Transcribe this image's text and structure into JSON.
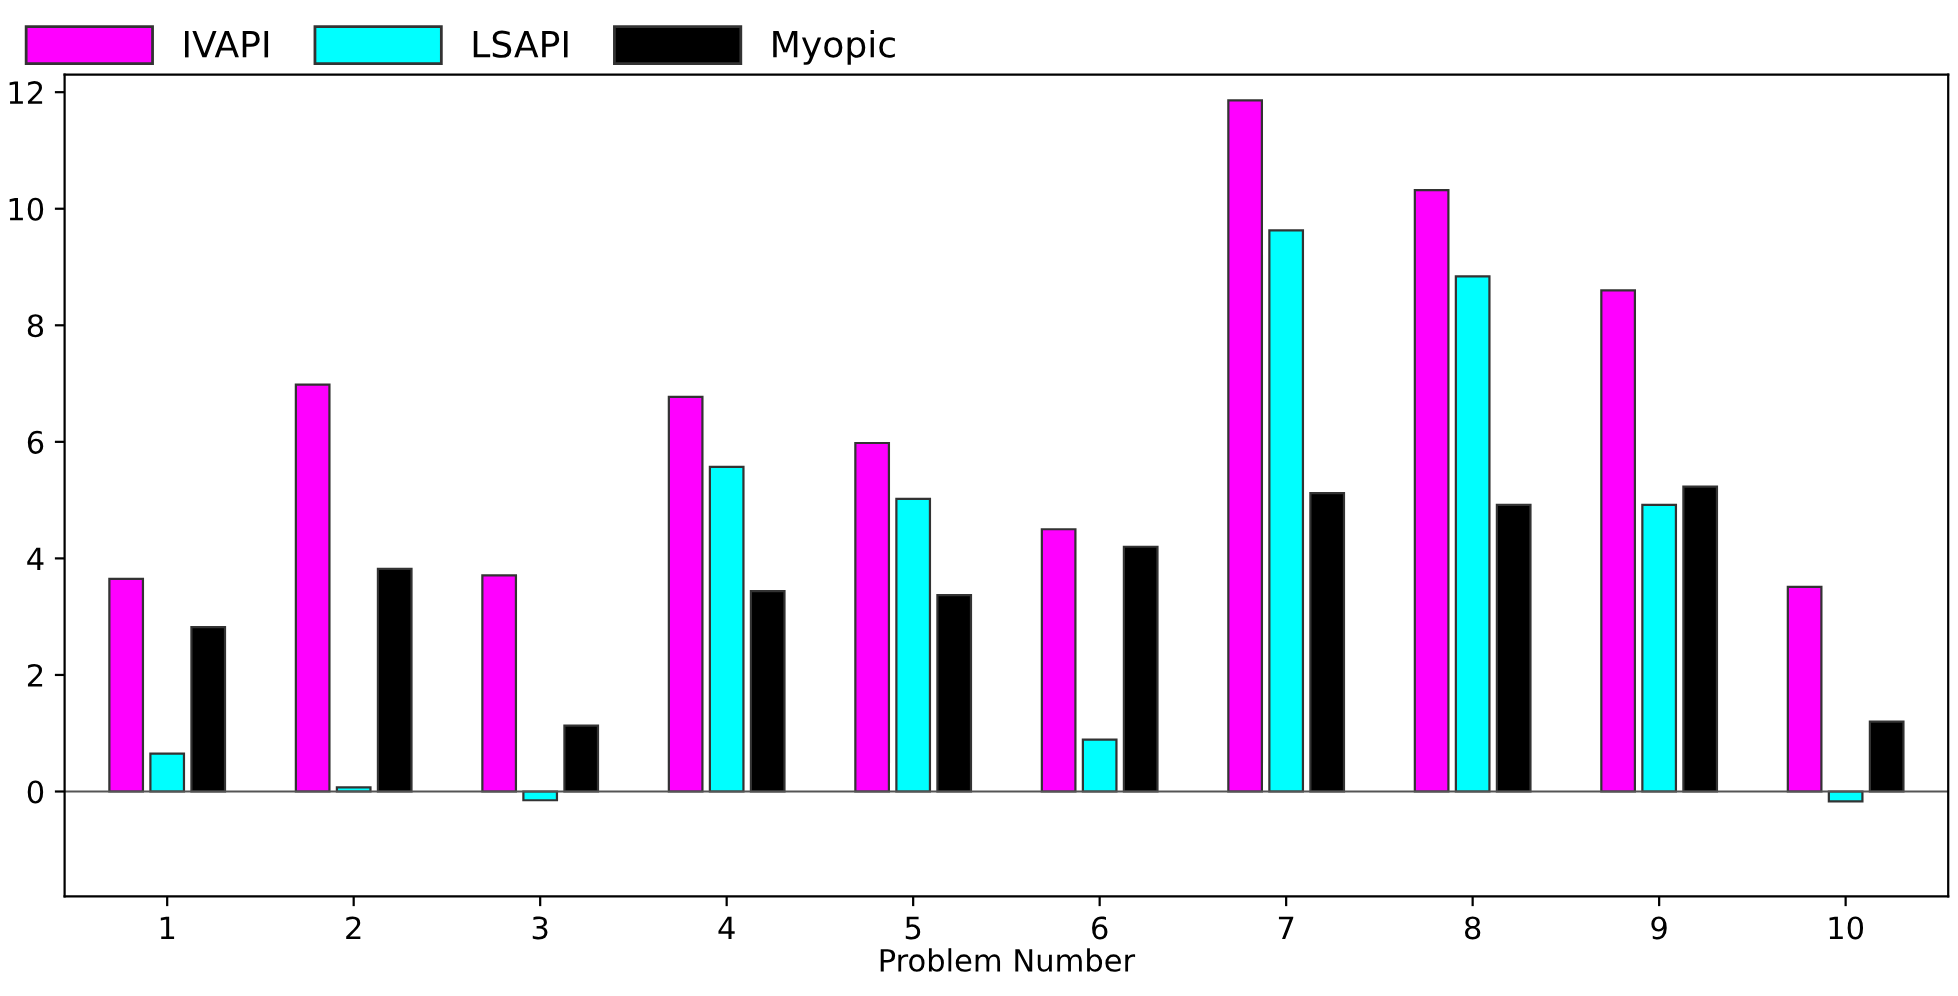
{
  "chart_data": {
    "type": "bar",
    "xlabel": "Problem Number",
    "categories": [
      "1",
      "2",
      "3",
      "4",
      "5",
      "6",
      "7",
      "8",
      "9",
      "10"
    ],
    "series": [
      {
        "name": "IVAPI",
        "color": "#ff00ff",
        "values": [
          3.65,
          6.98,
          3.71,
          6.77,
          5.98,
          4.5,
          11.86,
          10.32,
          8.6,
          3.51
        ]
      },
      {
        "name": "LSAPI",
        "color": "#00ffff",
        "values": [
          0.65,
          0.07,
          -0.15,
          5.57,
          5.02,
          0.89,
          9.63,
          8.84,
          4.92,
          -0.17
        ]
      },
      {
        "name": "Myopic",
        "color": "#000000",
        "values": [
          2.82,
          3.82,
          1.13,
          3.44,
          3.37,
          4.2,
          5.12,
          4.92,
          5.23,
          1.2
        ]
      }
    ],
    "ylim": [
      -1.8,
      12.3
    ],
    "yticks": [
      0,
      2,
      4,
      6,
      8,
      10,
      12
    ],
    "ref_lines": [
      {
        "axis": "y",
        "value": 0,
        "color": "#555555"
      }
    ],
    "legend": "top left"
  }
}
